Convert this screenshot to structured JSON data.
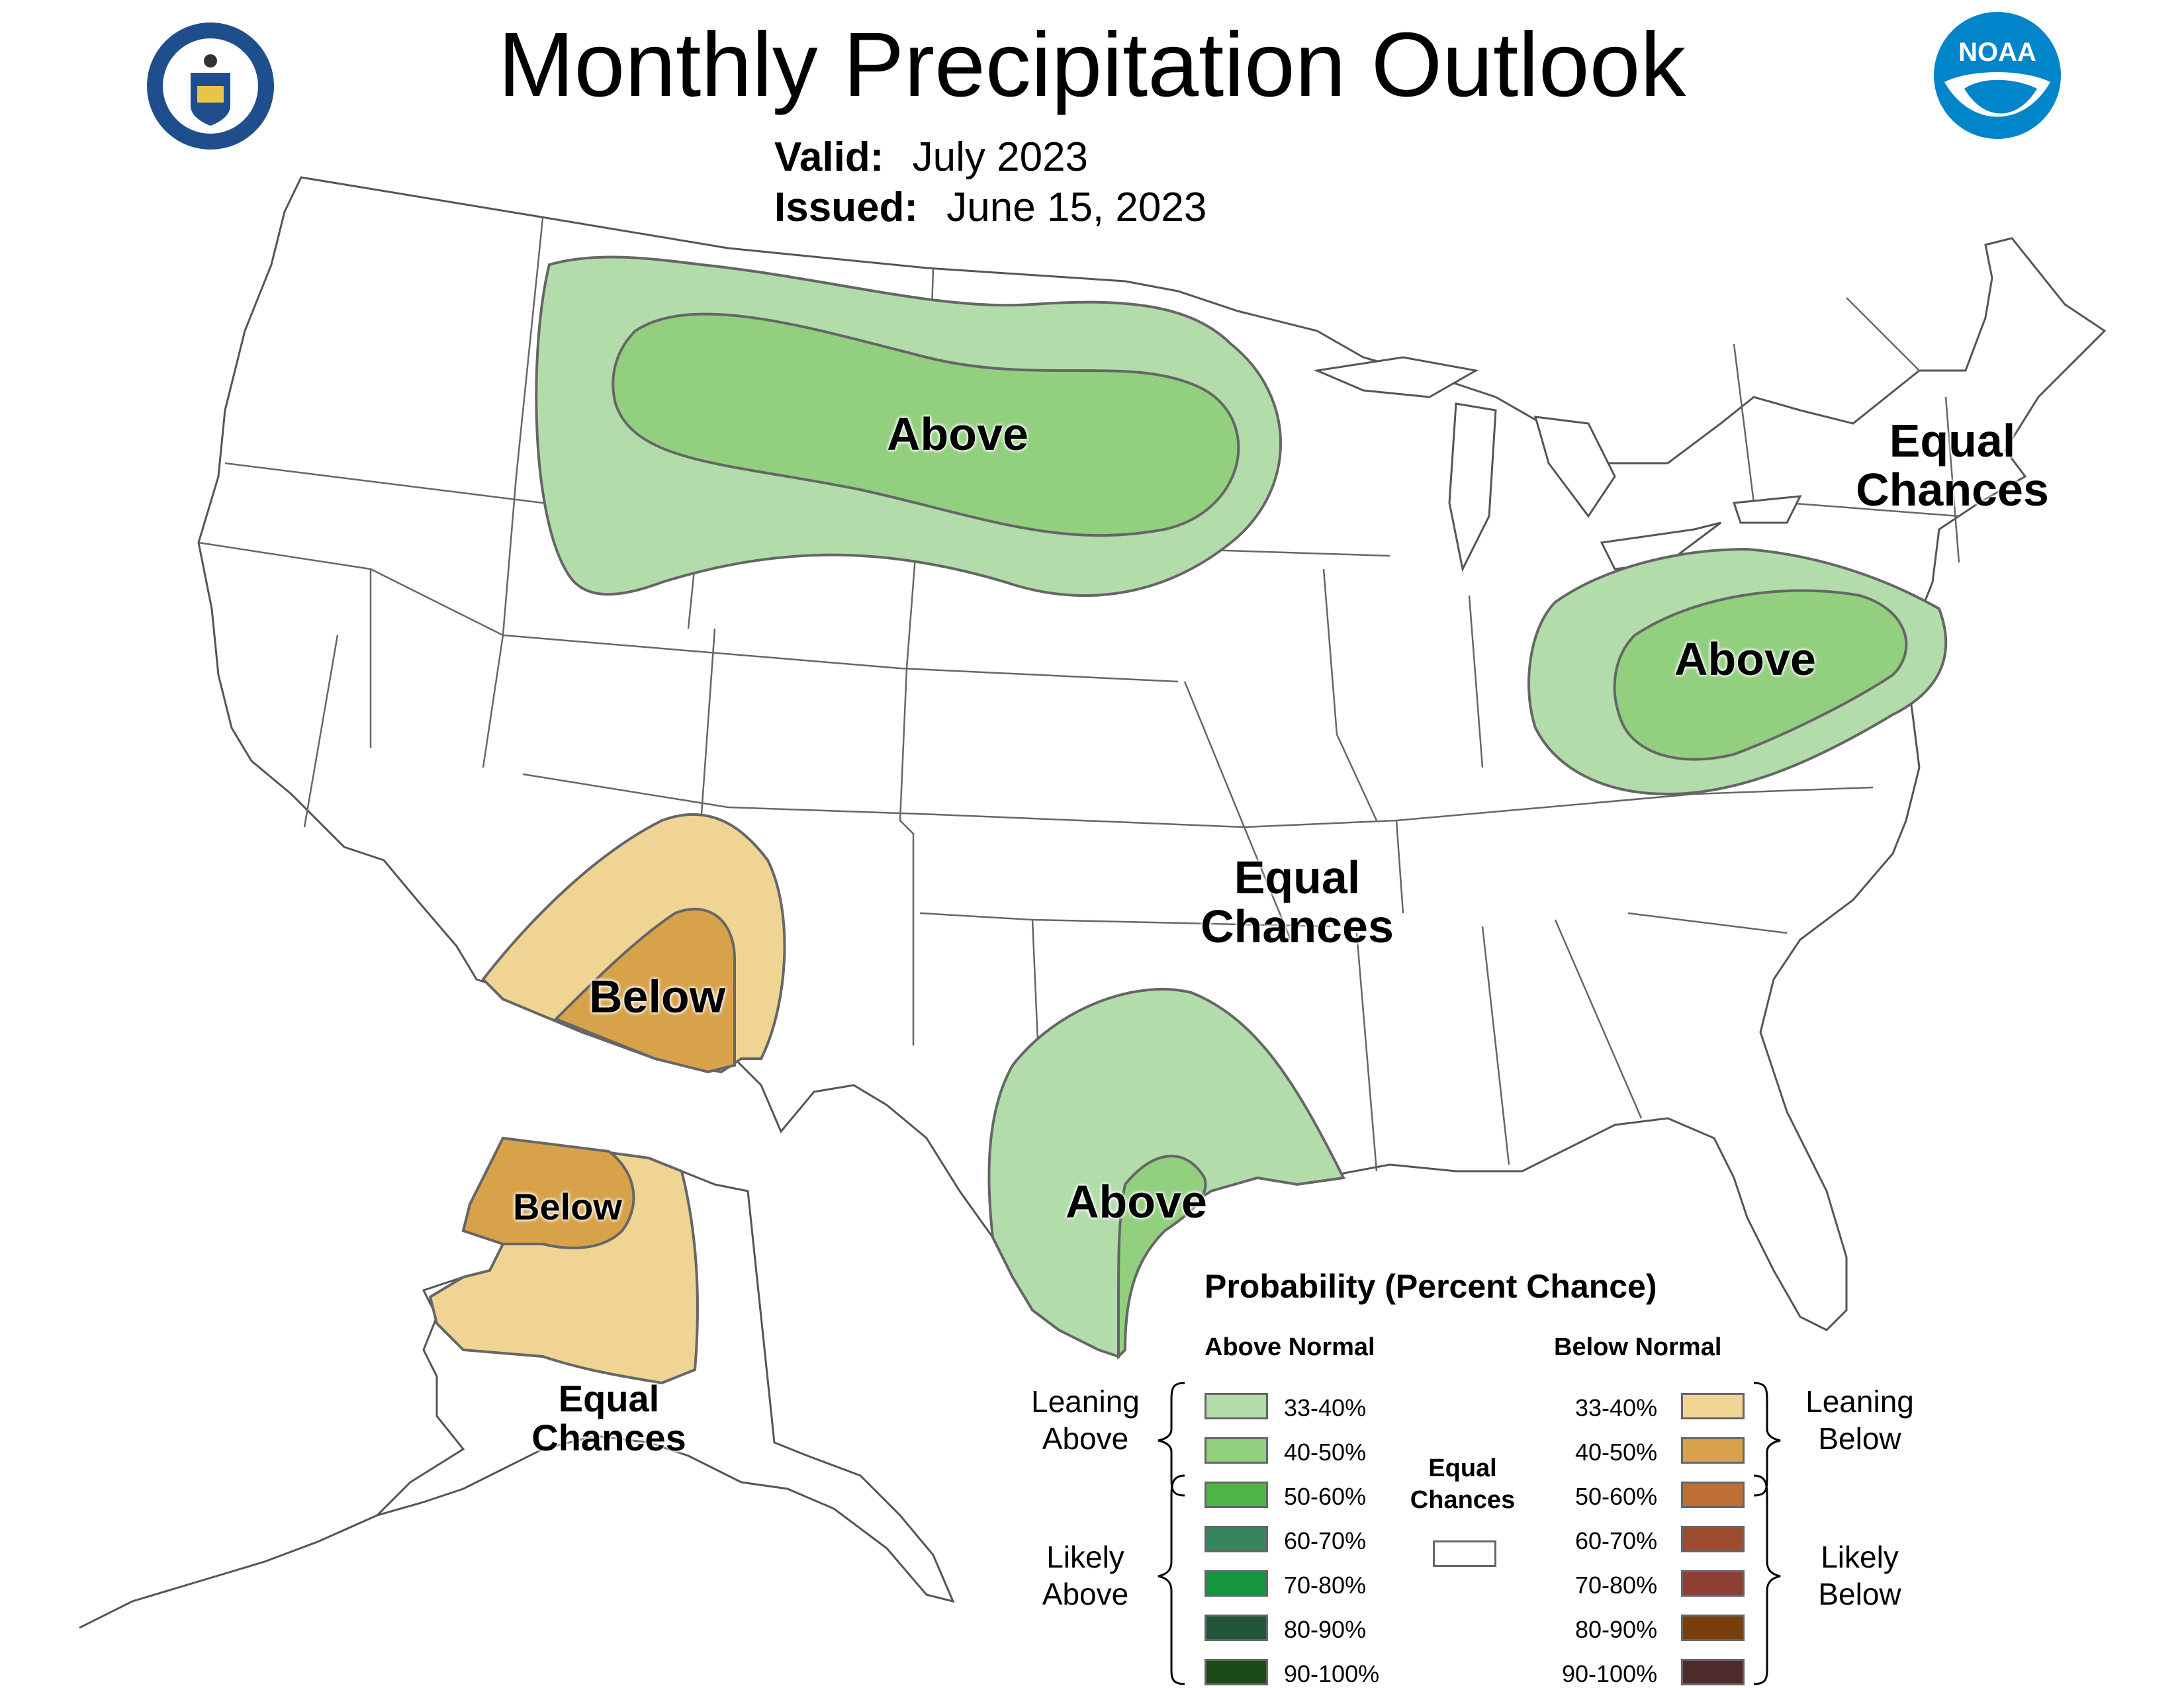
{
  "header": {
    "title": "Monthly Precipitation Outlook",
    "valid_label": "Valid:",
    "valid_value": "July 2023",
    "issued_label": "Issued:",
    "issued_value": "June 15, 2023"
  },
  "logos": {
    "commerce_seal": "Department of Commerce seal",
    "noaa_logo": "NOAA",
    "noaa_color": "#0085CA"
  },
  "map_labels": {
    "above_north": "Above",
    "equal_northeast_1": "Equal",
    "equal_northeast_2": "Chances",
    "above_ohio": "Above",
    "equal_central_1": "Equal",
    "equal_central_2": "Chances",
    "below_southwest": "Below",
    "above_texas": "Above",
    "below_alaska": "Below",
    "equal_alaska_1": "Equal",
    "equal_alaska_2": "Chances"
  },
  "legend": {
    "title": "Probability (Percent Chance)",
    "above_header": "Above Normal",
    "below_header": "Below Normal",
    "leaning_above": [
      "Leaning",
      "Above"
    ],
    "likely_above": [
      "Likely",
      "Above"
    ],
    "leaning_below": [
      "Leaning",
      "Below"
    ],
    "likely_below": [
      "Likely",
      "Below"
    ],
    "equal_chances": [
      "Equal",
      "Chances"
    ],
    "above": [
      {
        "range": "33-40%",
        "color": "#b3dcab"
      },
      {
        "range": "40-50%",
        "color": "#92cf7f"
      },
      {
        "range": "50-60%",
        "color": "#4db647"
      },
      {
        "range": "60-70%",
        "color": "#36855c"
      },
      {
        "range": "70-80%",
        "color": "#14963f"
      },
      {
        "range": "80-90%",
        "color": "#22553a"
      },
      {
        "range": "90-100%",
        "color": "#1d4b18"
      }
    ],
    "below": [
      {
        "range": "33-40%",
        "color": "#f0d494"
      },
      {
        "range": "40-50%",
        "color": "#d8a24a"
      },
      {
        "range": "50-60%",
        "color": "#be6f35"
      },
      {
        "range": "60-70%",
        "color": "#9c4c2f"
      },
      {
        "range": "70-80%",
        "color": "#8f4034"
      },
      {
        "range": "80-90%",
        "color": "#7a3d0c"
      },
      {
        "range": "90-100%",
        "color": "#4e2c2c"
      }
    ],
    "equal_color": "#ffffff"
  }
}
